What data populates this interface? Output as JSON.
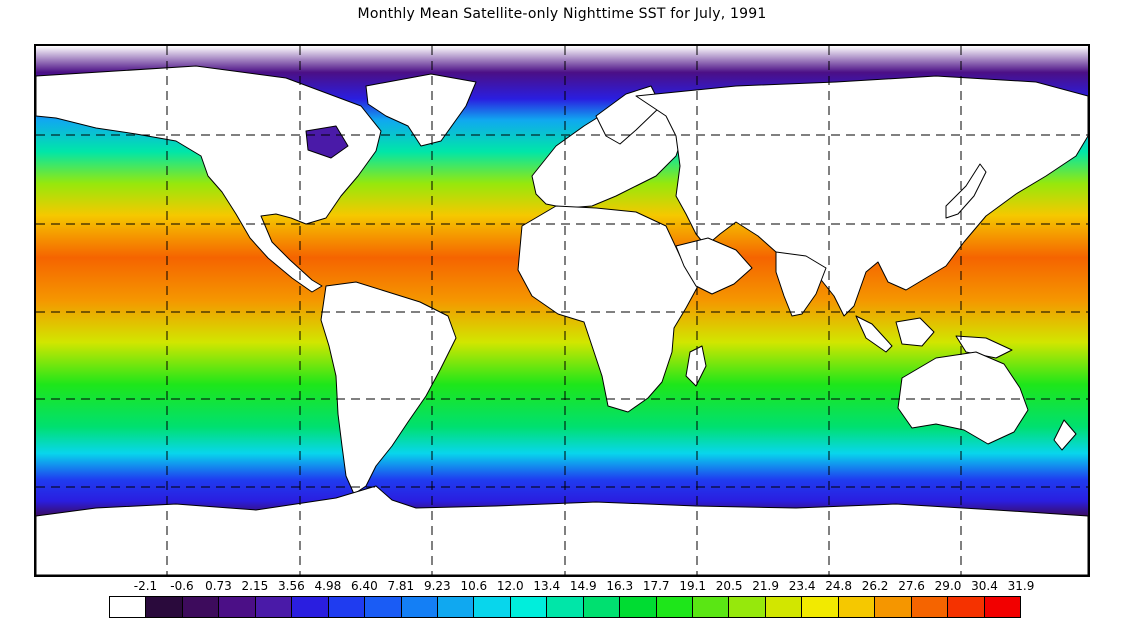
{
  "title": "Monthly Mean Satellite-only Nighttime SST for July, 1991",
  "colorbar": {
    "labels": [
      "-2.1",
      "-0.6",
      "0.73",
      "2.15",
      "3.56",
      "4.98",
      "6.40",
      "7.81",
      "9.23",
      "10.6",
      "12.0",
      "13.4",
      "14.9",
      "16.3",
      "17.7",
      "19.1",
      "20.5",
      "21.9",
      "23.4",
      "24.8",
      "26.2",
      "27.6",
      "29.0",
      "30.4",
      "31.9"
    ],
    "colors": [
      "#ffffff",
      "#2a0a3c",
      "#3d0b5c",
      "#4b0f86",
      "#4a1aa8",
      "#2a1ee0",
      "#1f3cf0",
      "#1a5cf5",
      "#147ff5",
      "#10a8f0",
      "#08d6ec",
      "#00eedc",
      "#00e6a8",
      "#00e070",
      "#00dc32",
      "#1ee61a",
      "#5ae614",
      "#96e80c",
      "#d2e600",
      "#f2ea00",
      "#f5c800",
      "#f59600",
      "#f56400",
      "#f53200",
      "#f20000"
    ]
  },
  "map": {
    "lon_gridlines": [
      -120,
      -60,
      0,
      60,
      120
    ],
    "lat_gridlines": [
      60,
      30,
      0,
      -30,
      -60
    ],
    "land_color": "#ffffff",
    "coastline_color": "#000000"
  }
}
